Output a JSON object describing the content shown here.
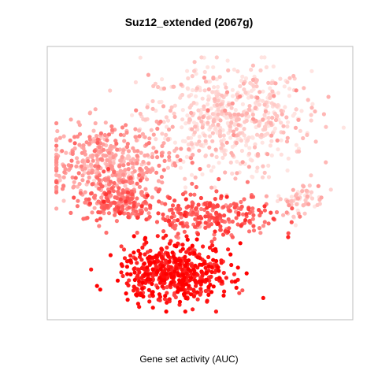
{
  "chart_data": {
    "type": "scatter",
    "title": "Suz12_extended (2067g)",
    "xlabel": "Gene set activity (AUC)",
    "ylabel": "",
    "grid": false,
    "legend": "none",
    "color_scale": {
      "low": "#ffe4e1",
      "high": "#ff0000",
      "min": 0,
      "max": 1
    },
    "xlim": [
      0,
      1
    ],
    "ylim": [
      0,
      1
    ],
    "clusters": [
      {
        "name": "upper-right",
        "cx": 0.59,
        "cy": 0.74,
        "sx": 0.18,
        "sy": 0.13,
        "n": 620,
        "activity": 0.06
      },
      {
        "name": "right-arm",
        "cx": 0.83,
        "cy": 0.44,
        "sx": 0.05,
        "sy": 0.04,
        "n": 70,
        "activity": 0.08
      },
      {
        "name": "left-upper",
        "cx": 0.2,
        "cy": 0.57,
        "sx": 0.14,
        "sy": 0.09,
        "n": 420,
        "activity": 0.28
      },
      {
        "name": "left-lower",
        "cx": 0.23,
        "cy": 0.44,
        "sx": 0.08,
        "sy": 0.06,
        "n": 200,
        "activity": 0.5
      },
      {
        "name": "middle-band",
        "cx": 0.52,
        "cy": 0.38,
        "sx": 0.15,
        "sy": 0.05,
        "n": 260,
        "activity": 0.58
      },
      {
        "name": "bottom-core",
        "cx": 0.42,
        "cy": 0.17,
        "sx": 0.12,
        "sy": 0.07,
        "n": 520,
        "activity": 0.9
      }
    ]
  }
}
